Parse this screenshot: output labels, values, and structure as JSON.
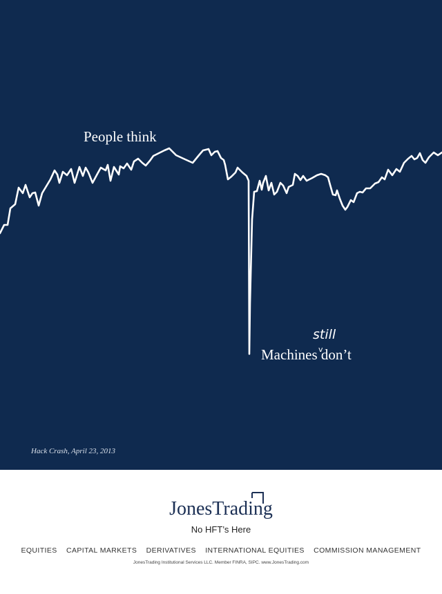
{
  "colors": {
    "background": "#0f2a4f",
    "line": "#ffffff",
    "brand": "#1b2f54"
  },
  "headline": {
    "top": "People think",
    "bottom": "Machines",
    "insert": "still",
    "bottom_end": "don’t"
  },
  "caption": "Hack Crash, April 23, 2013",
  "brand": {
    "name": "JonesTrading",
    "tagline": "No HFT’s Here",
    "logo_icon": "corner-square-icon"
  },
  "services": [
    "EQUITIES",
    "CAPITAL MARKETS",
    "DERIVATIVES",
    "INTERNATIONAL EQUITIES",
    "COMMISSION MANAGEMENT"
  ],
  "legal": "JonesTrading Institutional Services LLC.  Member FINRA, SIPC.  www.JonesTrading.com"
}
